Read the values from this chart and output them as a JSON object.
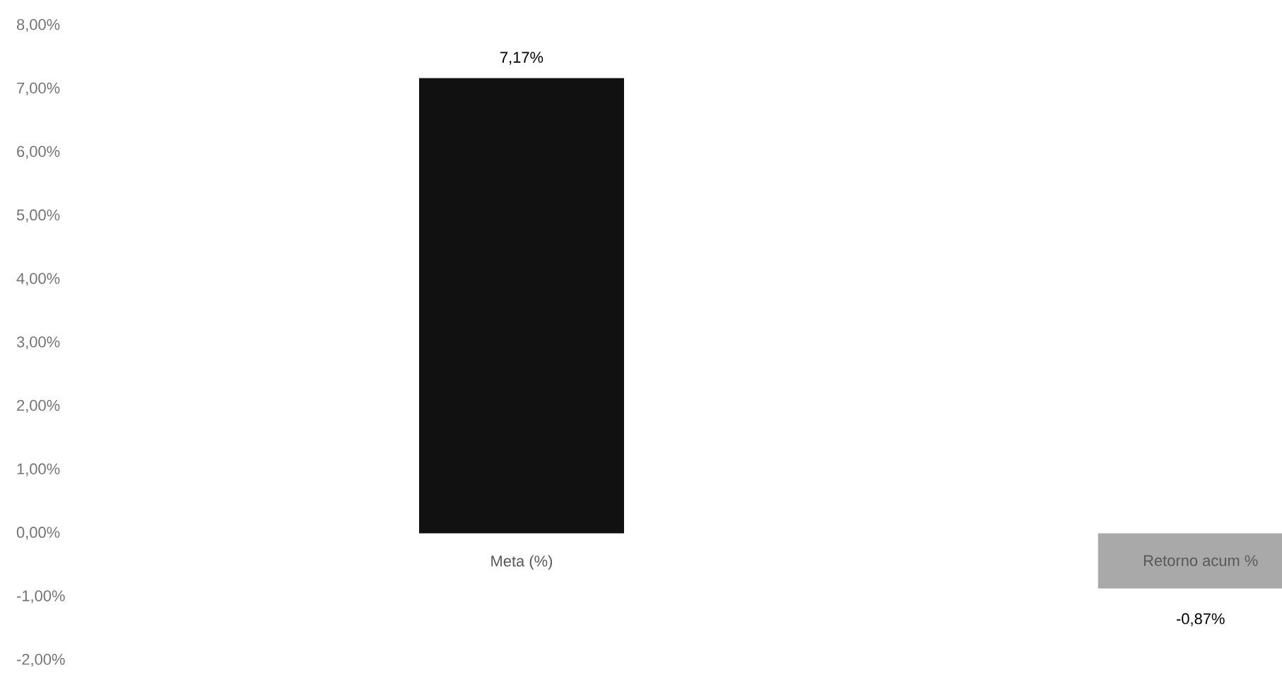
{
  "chart_data": {
    "type": "bar",
    "categories": [
      "Meta (%)",
      "Retorno acum %"
    ],
    "values": [
      7.17,
      -0.87
    ],
    "colors": [
      "#111111",
      "#a9a9a9"
    ],
    "value_labels": [
      "7,17%",
      "-0,87%"
    ],
    "ylim": [
      -2,
      8
    ],
    "yticks": [
      {
        "value": -2,
        "label": "-2,00%"
      },
      {
        "value": -1,
        "label": "-1,00%"
      },
      {
        "value": 0,
        "label": "0,00%"
      },
      {
        "value": 1,
        "label": "1,00%"
      },
      {
        "value": 2,
        "label": "2,00%"
      },
      {
        "value": 3,
        "label": "3,00%"
      },
      {
        "value": 4,
        "label": "4,00%"
      },
      {
        "value": 5,
        "label": "5,00%"
      },
      {
        "value": 6,
        "label": "6,00%"
      },
      {
        "value": 7,
        "label": "7,00%"
      },
      {
        "value": 8,
        "label": "8,00%"
      }
    ]
  }
}
